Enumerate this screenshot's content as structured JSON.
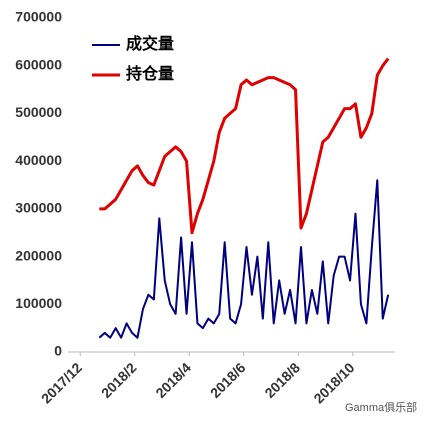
{
  "chart_data": {
    "type": "line",
    "x": [
      0.7,
      0.9,
      1.1,
      1.3,
      1.5,
      1.7,
      1.9,
      2.1,
      2.3,
      2.5,
      2.7,
      2.9,
      3.1,
      3.3,
      3.5,
      3.7,
      3.9,
      4.1,
      4.3,
      4.5,
      4.7,
      4.9,
      5.1,
      5.3,
      5.5,
      5.7,
      5.9,
      6.1,
      6.3,
      6.5,
      6.7,
      6.9,
      7.1,
      7.3,
      7.5,
      7.7,
      7.9,
      8.1,
      8.3,
      8.5,
      8.7,
      8.9,
      9.1,
      9.3,
      9.5,
      9.7,
      9.9,
      10.1,
      10.3,
      10.5,
      10.7,
      10.9,
      11.1,
      11.3
    ],
    "series": [
      {
        "name": "成交量",
        "color": "#000080",
        "values": [
          30000,
          40000,
          30000,
          50000,
          30000,
          60000,
          40000,
          30000,
          90000,
          120000,
          110000,
          280000,
          150000,
          100000,
          80000,
          240000,
          80000,
          230000,
          60000,
          50000,
          70000,
          60000,
          80000,
          230000,
          70000,
          60000,
          100000,
          220000,
          120000,
          200000,
          70000,
          230000,
          60000,
          150000,
          80000,
          130000,
          60000,
          220000,
          60000,
          130000,
          80000,
          190000,
          60000,
          160000,
          200000,
          200000,
          150000,
          290000,
          100000,
          60000,
          220000,
          360000,
          70000,
          120000
        ]
      },
      {
        "name": "持仓量",
        "color": "#e00000",
        "values": [
          300000,
          300000,
          310000,
          320000,
          340000,
          360000,
          380000,
          390000,
          370000,
          355000,
          350000,
          380000,
          410000,
          420000,
          430000,
          420000,
          400000,
          250000,
          290000,
          320000,
          360000,
          400000,
          460000,
          490000,
          500000,
          510000,
          560000,
          570000,
          560000,
          565000,
          570000,
          575000,
          575000,
          570000,
          565000,
          560000,
          550000,
          260000,
          290000,
          340000,
          390000,
          440000,
          450000,
          470000,
          490000,
          510000,
          510000,
          520000,
          450000,
          470000,
          500000,
          580000,
          600000,
          615000
        ]
      }
    ],
    "xlim": [
      -0.45,
      11.55
    ],
    "xticks": [
      {
        "value": 0,
        "label": "2017/12"
      },
      {
        "value": 2,
        "label": "2018/2"
      },
      {
        "value": 4,
        "label": "2018/4"
      },
      {
        "value": 6,
        "label": "2018/6"
      },
      {
        "value": 8,
        "label": "2018/8"
      },
      {
        "value": 10,
        "label": "2018/10"
      }
    ],
    "ylim": [
      0,
      700000
    ],
    "yticks": [
      0,
      100000,
      200000,
      300000,
      400000,
      500000,
      600000,
      700000
    ],
    "watermark": "Gamma俱乐部"
  }
}
